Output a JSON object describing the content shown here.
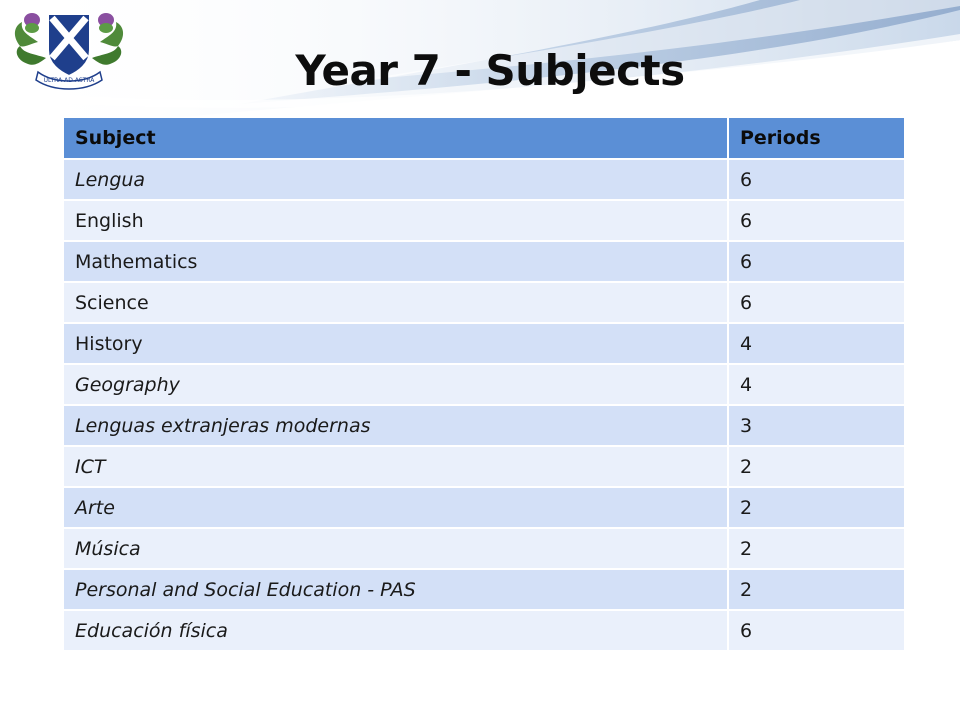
{
  "slide": {
    "title": "Year 7 - Subjects",
    "logo_icon": "school-crest-icon",
    "logo_motto": "ULTRA AD ASTRA"
  },
  "colors": {
    "header": "#5b8fd6",
    "row_a": "#d3e0f7",
    "row_b": "#eaf0fb",
    "swoosh": "#a8bfdc"
  },
  "table": {
    "headers": [
      "Subject",
      "Periods"
    ],
    "rows": [
      {
        "subject": "Lengua",
        "periods": "6",
        "italic": true
      },
      {
        "subject": "English",
        "periods": "6",
        "italic": false
      },
      {
        "subject": "Mathematics",
        "periods": "6",
        "italic": false
      },
      {
        "subject": "Science",
        "periods": "6",
        "italic": false
      },
      {
        "subject": "History",
        "periods": "4",
        "italic": false
      },
      {
        "subject": "Geography",
        "periods": "4",
        "italic": true
      },
      {
        "subject": "Lenguas extranjeras modernas",
        "periods": "3",
        "italic": true
      },
      {
        "subject": "ICT",
        "periods": "2",
        "italic": true
      },
      {
        "subject": "Arte",
        "periods": "2",
        "italic": true
      },
      {
        "subject": "Música",
        "periods": "2",
        "italic": true
      },
      {
        "subject": "Personal and Social Education - PAS",
        "periods": "2",
        "italic": true
      },
      {
        "subject": "Educación física",
        "periods": "6",
        "italic": true
      }
    ]
  }
}
